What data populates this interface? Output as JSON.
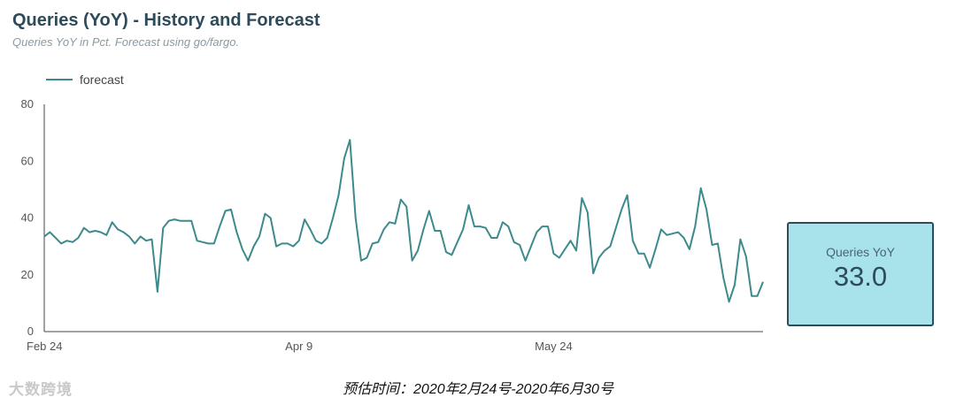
{
  "header": {
    "title": "Queries (YoY) - History and Forecast",
    "subtitle": "Queries YoY in Pct. Forecast using go/fargo."
  },
  "kpi": {
    "label": "Queries YoY",
    "value": "33.0"
  },
  "caption": "预估时间：2020年2月24号-2020年6月30号",
  "watermark": "大数跨境",
  "colors": {
    "line": "#3d8a8c",
    "title": "#2d4b5a",
    "kpi_bg": "#a8e3ec",
    "kpi_border": "#2d4b5a"
  },
  "chart_data": {
    "type": "line",
    "title": "Queries (YoY) - History and Forecast",
    "ylim": [
      0,
      80
    ],
    "y_ticks": [
      "0",
      "20",
      "40",
      "60",
      "80"
    ],
    "x_ticks": [
      {
        "label": "Feb 24",
        "x": "2020-02-24"
      },
      {
        "label": "Apr 9",
        "x": "2020-04-09"
      },
      {
        "label": "May 24",
        "x": "2020-05-24"
      }
    ],
    "grid": false,
    "legend_position": "top-left",
    "series": [
      {
        "name": "forecast",
        "start_date": "2020-02-24",
        "values": [
          33.5,
          35,
          33,
          31,
          32,
          31.5,
          33,
          36.5,
          35,
          35.5,
          35,
          34,
          38.5,
          36,
          35,
          33.5,
          31,
          33.5,
          32,
          32.5,
          14,
          36.5,
          39,
          39.5,
          39,
          39,
          39,
          32,
          31.5,
          31,
          31,
          37,
          42.5,
          43,
          35,
          29,
          25,
          30,
          33.5,
          41.5,
          40,
          30,
          31,
          31,
          30,
          32,
          39.5,
          36,
          32,
          31,
          33,
          40,
          48,
          61,
          67.5,
          40,
          25,
          26,
          31,
          31.5,
          36,
          38.5,
          38,
          46.5,
          44,
          25,
          28.5,
          36,
          42.5,
          35.5,
          35.5,
          28,
          27,
          31.5,
          36,
          44.5,
          37,
          37,
          36.5,
          33,
          33,
          38.5,
          37,
          31.5,
          30.5,
          25,
          30,
          35,
          37,
          37,
          27.5,
          26,
          29,
          32,
          28.5,
          47,
          42,
          20.5,
          26,
          28.5,
          30,
          36.5,
          43,
          48,
          32,
          27.5,
          27.5,
          22.5,
          29,
          36,
          34,
          34.5,
          35,
          33,
          29,
          37,
          50.5,
          43,
          30.5,
          31,
          19,
          10.5,
          16.5,
          32.5,
          26.5,
          12.5,
          12.5,
          17.5
        ]
      }
    ]
  }
}
